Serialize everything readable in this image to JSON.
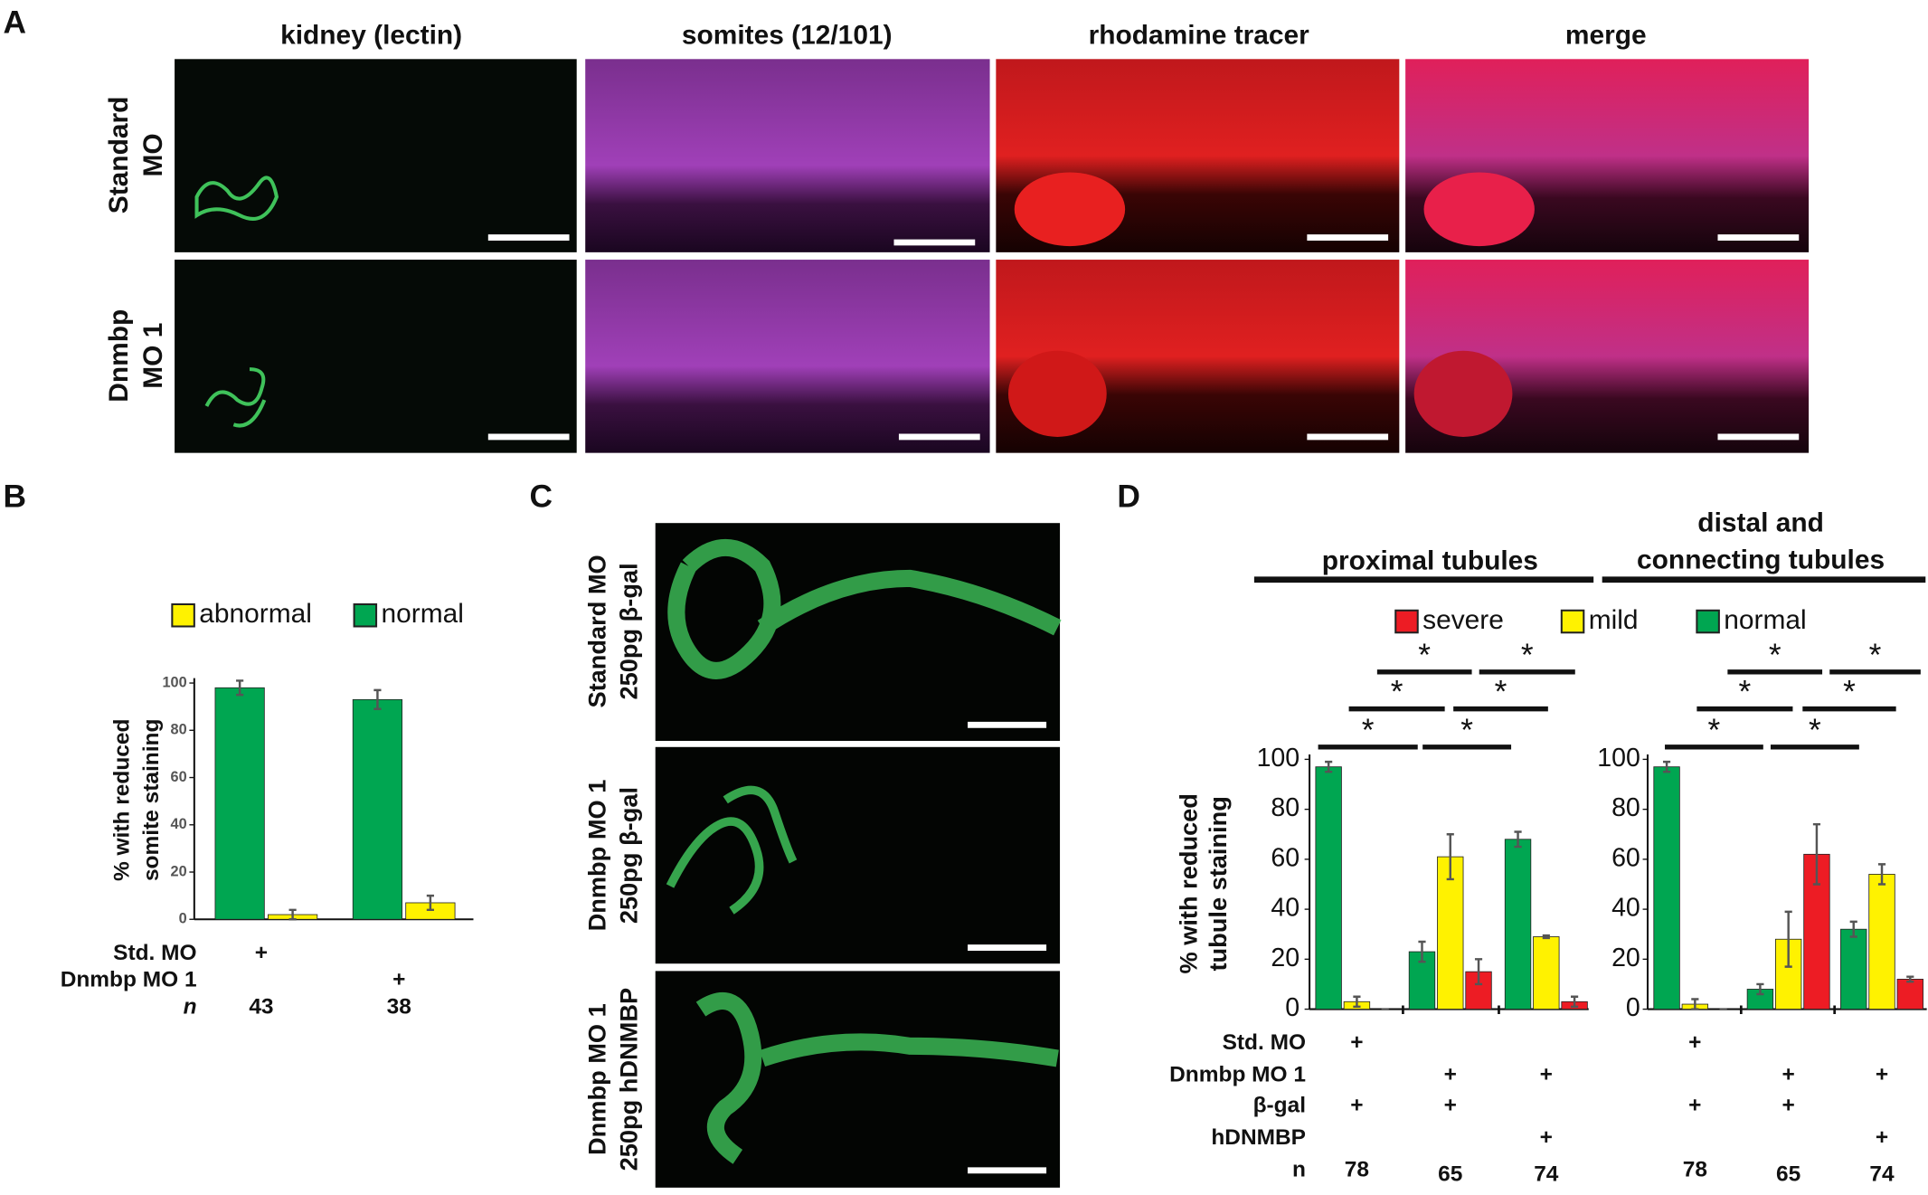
{
  "panel_labels": [
    "A",
    "B",
    "C",
    "D"
  ],
  "panel_a": {
    "columns": [
      "kidney (lectin)",
      "somites (12/101)",
      "rhodamine tracer",
      "merge"
    ],
    "rows": [
      [
        "Standard",
        "MO"
      ],
      [
        "Dnmbp",
        "MO 1"
      ]
    ]
  },
  "panel_c": {
    "rows": [
      [
        "Standard MO",
        "250pg β-gal"
      ],
      [
        "Dnmbp MO 1",
        "250pg β-gal"
      ],
      [
        "Dnmbp MO 1",
        "250pg hDNMBP"
      ]
    ]
  },
  "chart_data": [
    {
      "type": "bar",
      "ylabel": [
        "% with reduced",
        "somite staining"
      ],
      "ylim": [
        0,
        100
      ],
      "yticks": [
        0,
        20,
        40,
        60,
        80,
        100
      ],
      "series": [
        {
          "name": "abnormal",
          "color": "#fff200",
          "values": [
            2,
            7
          ],
          "errors": [
            2,
            3
          ]
        },
        {
          "name": "normal",
          "color": "#00a651",
          "values": [
            98,
            93
          ],
          "errors": [
            3,
            4
          ]
        }
      ],
      "condition_labels": [
        "Std. MO",
        "Dnmbp MO 1",
        "n"
      ],
      "conditions": [
        [
          "+",
          null
        ],
        [
          null,
          "+"
        ]
      ],
      "n": [
        43,
        38
      ]
    },
    {
      "type": "bar",
      "title_lines": [
        "proximal tubules"
      ],
      "ylabel": [
        "% with reduced",
        "tubule staining"
      ],
      "ylim": [
        0,
        100
      ],
      "yticks": [
        0,
        20,
        40,
        60,
        80,
        100
      ],
      "series": [
        {
          "name": "severe",
          "color": "#ed1c24",
          "values": [
            0,
            15,
            3
          ],
          "errors": [
            0,
            5,
            2
          ]
        },
        {
          "name": "mild",
          "color": "#fff200",
          "values": [
            3,
            61,
            29
          ],
          "errors": [
            2,
            9,
            0.5
          ]
        },
        {
          "name": "normal",
          "color": "#00a651",
          "values": [
            97,
            23,
            68
          ],
          "errors": [
            2,
            4,
            3
          ]
        }
      ],
      "significance": [
        "*",
        "*",
        "*",
        "*",
        "*",
        "*"
      ],
      "condition_labels": [
        "Std. MO",
        "Dnmbp MO 1",
        "β-gal",
        "hDNMBP",
        "n"
      ],
      "conditions": [
        [
          "+",
          null,
          null
        ],
        [
          null,
          "+",
          "+"
        ],
        [
          "+",
          "+",
          null
        ],
        [
          null,
          null,
          "+"
        ]
      ],
      "n": [
        78,
        65,
        74
      ]
    },
    {
      "type": "bar",
      "title_lines": [
        "distal and",
        "connecting tubules"
      ],
      "ylim": [
        0,
        100
      ],
      "yticks": [
        0,
        20,
        40,
        60,
        80,
        100
      ],
      "series": [
        {
          "color": "#ed1c24",
          "values": [
            0,
            62,
            12
          ],
          "errors": [
            0,
            12,
            1
          ]
        },
        {
          "color": "#fff200",
          "values": [
            2,
            28,
            54
          ],
          "errors": [
            2,
            11,
            4
          ]
        },
        {
          "color": "#00a651",
          "values": [
            97,
            8,
            32
          ],
          "errors": [
            2,
            2,
            3
          ]
        }
      ],
      "significance": [
        "*",
        "*",
        "*",
        "*",
        "*",
        "*"
      ],
      "conditions": [
        [
          "+",
          null,
          null
        ],
        [
          null,
          "+",
          "+"
        ],
        [
          "+",
          "+",
          null
        ],
        [
          null,
          null,
          "+"
        ]
      ],
      "n": [
        78,
        65,
        74
      ]
    }
  ]
}
